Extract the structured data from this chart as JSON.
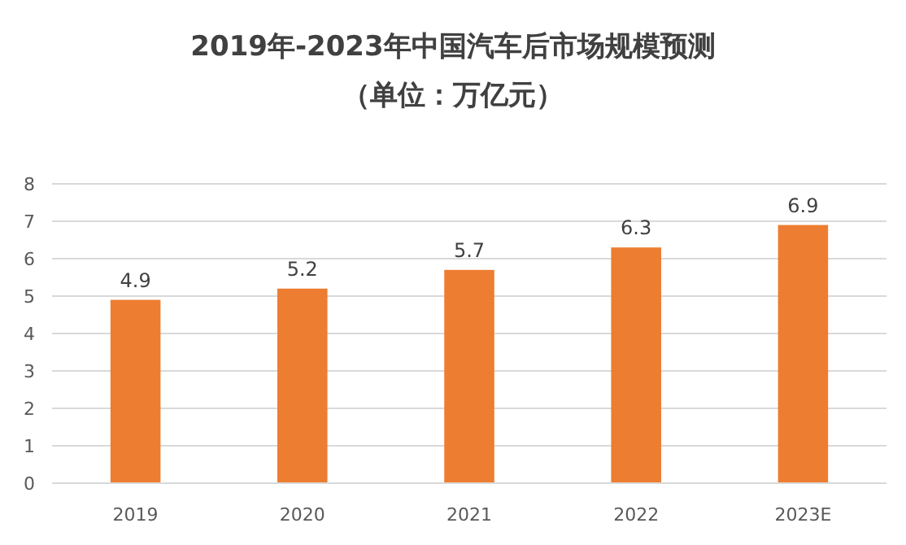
{
  "chart_data": {
    "type": "bar",
    "title": "2019年-2023年中国汽车后市场规模预测",
    "subtitle": "（单位：万亿元）",
    "categories": [
      "2019",
      "2020",
      "2021",
      "2022",
      "2023E"
    ],
    "values": [
      4.9,
      5.2,
      5.7,
      6.3,
      6.9
    ],
    "color": "#ed7d31",
    "ylim": [
      0,
      8
    ],
    "yticks": [
      0,
      1,
      2,
      3,
      4,
      5,
      6,
      7,
      8
    ],
    "grid": "y",
    "data_labels": true
  }
}
